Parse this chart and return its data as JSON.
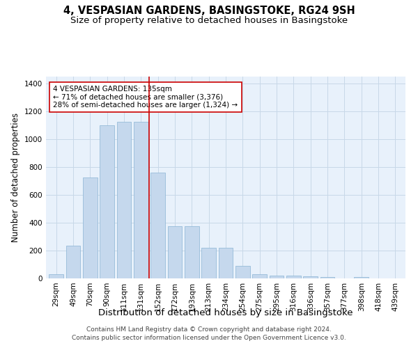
{
  "title": "4, VESPASIAN GARDENS, BASINGSTOKE, RG24 9SH",
  "subtitle": "Size of property relative to detached houses in Basingstoke",
  "xlabel": "Distribution of detached houses by size in Basingstoke",
  "ylabel": "Number of detached properties",
  "categories": [
    "29sqm",
    "49sqm",
    "70sqm",
    "90sqm",
    "111sqm",
    "131sqm",
    "152sqm",
    "172sqm",
    "193sqm",
    "213sqm",
    "234sqm",
    "254sqm",
    "275sqm",
    "295sqm",
    "316sqm",
    "336sqm",
    "357sqm",
    "377sqm",
    "398sqm",
    "418sqm",
    "439sqm"
  ],
  "values": [
    30,
    235,
    725,
    1100,
    1125,
    1125,
    760,
    375,
    375,
    220,
    220,
    90,
    30,
    22,
    20,
    15,
    10,
    0,
    10,
    0,
    0
  ],
  "bar_color": "#c5d8ed",
  "bar_edge_color": "#8ab4d4",
  "grid_color": "#c8d8e8",
  "background_color": "#e8f1fb",
  "vline_x": 5.5,
  "vline_color": "#cc0000",
  "annotation_text": "4 VESPASIAN GARDENS: 135sqm\n← 71% of detached houses are smaller (3,376)\n28% of semi-detached houses are larger (1,324) →",
  "annotation_box_color": "#ffffff",
  "annotation_box_edge": "#cc0000",
  "ylim": [
    0,
    1450
  ],
  "yticks": [
    0,
    200,
    400,
    600,
    800,
    1000,
    1200,
    1400
  ],
  "footer1": "Contains HM Land Registry data © Crown copyright and database right 2024.",
  "footer2": "Contains public sector information licensed under the Open Government Licence v3.0.",
  "title_fontsize": 10.5,
  "subtitle_fontsize": 9.5,
  "xlabel_fontsize": 9.5,
  "ylabel_fontsize": 8.5,
  "tick_fontsize": 7.5,
  "annotation_fontsize": 7.5,
  "footer_fontsize": 6.5
}
